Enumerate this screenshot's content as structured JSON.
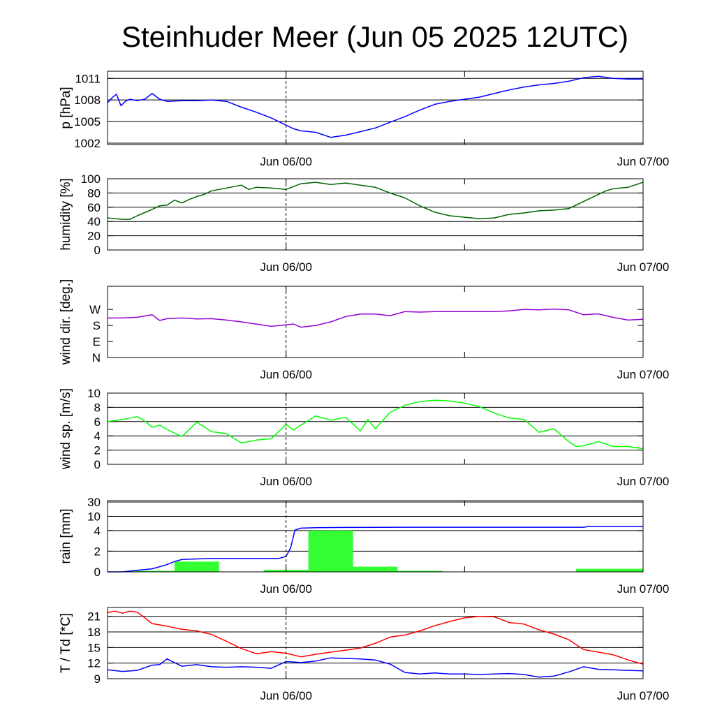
{
  "title": "Steinhuder Meer (Jun 05 2025 12UTC)",
  "colors": {
    "pressure": "#0000ff",
    "humidity": "#006400",
    "wind_dir": "#9400d3",
    "wind_speed": "#00ff00",
    "rain_bar": "#33ff33",
    "rain_line": "#0000ff",
    "temperature": "#ff0000",
    "dewpoint": "#0000ff"
  },
  "chart_data": [
    {
      "type": "line",
      "ylabel": "p [hPa]",
      "x_tick_labels": [
        "Jun 06/00",
        "Jun 07/00"
      ],
      "xlim": [
        0,
        36
      ],
      "ylim": [
        1001.8,
        1012
      ],
      "yticks": [
        1002,
        1005,
        1008,
        1011
      ],
      "ytick_labels": [
        "1002",
        "1005",
        "1008",
        "1011"
      ],
      "grid": "horizontal",
      "series": [
        {
          "color_key": "pressure",
          "x": [
            0,
            0.3,
            0.6,
            0.9,
            1.2,
            1.5,
            2,
            2.5,
            3,
            3.5,
            4,
            5,
            6,
            7,
            8,
            9,
            10,
            11,
            11.5,
            12,
            12.5,
            13,
            14,
            15,
            16,
            17,
            18,
            19,
            20,
            21,
            22,
            23,
            24,
            25,
            26,
            27,
            28,
            29,
            30,
            31,
            32,
            33,
            34,
            35,
            36
          ],
          "values": [
            1007.6,
            1008.3,
            1008.8,
            1007.2,
            1007.8,
            1008.1,
            1007.9,
            1008.1,
            1008.9,
            1008.1,
            1007.8,
            1007.9,
            1007.9,
            1008.0,
            1007.8,
            1007.0,
            1006.3,
            1005.5,
            1005.0,
            1004.5,
            1004.0,
            1003.7,
            1003.5,
            1002.8,
            1003.1,
            1003.6,
            1004.1,
            1004.9,
            1005.7,
            1006.6,
            1007.4,
            1007.8,
            1008.1,
            1008.4,
            1008.9,
            1009.4,
            1009.8,
            1010.1,
            1010.3,
            1010.6,
            1011.1,
            1011.3,
            1011.0,
            1010.9,
            1010.9
          ]
        }
      ]
    },
    {
      "type": "line",
      "ylabel": "humidity [%]",
      "x_tick_labels": [
        "Jun 06/00",
        "Jun 07/00"
      ],
      "xlim": [
        0,
        36
      ],
      "ylim": [
        0,
        100
      ],
      "yticks": [
        0,
        20,
        40,
        60,
        80,
        100
      ],
      "ytick_labels": [
        "0",
        "20",
        "40",
        "60",
        "80",
        "100"
      ],
      "grid": "horizontal",
      "series": [
        {
          "color_key": "humidity",
          "x": [
            0,
            1,
            1.5,
            2,
            3,
            3.5,
            4,
            4.5,
            5,
            5.5,
            6,
            6.5,
            7,
            8,
            9,
            9.5,
            10,
            11,
            12,
            13,
            14,
            15,
            16,
            17,
            18,
            19,
            20,
            21,
            22,
            23,
            24,
            25,
            26,
            27,
            28,
            29,
            30,
            31,
            32,
            33,
            33.5,
            34,
            35,
            36
          ],
          "values": [
            45,
            43,
            43,
            48,
            57,
            62,
            63,
            70,
            66,
            71,
            75,
            78,
            83,
            87,
            91,
            85,
            88,
            87,
            85,
            93,
            95,
            92,
            94,
            91,
            88,
            80,
            73,
            62,
            53,
            48,
            46,
            44,
            45,
            50,
            52,
            55,
            56,
            58,
            68,
            78,
            83,
            86,
            88,
            95
          ]
        }
      ]
    },
    {
      "type": "line",
      "ylabel": "wind dir. [deg.]",
      "x_tick_labels": [
        "Jun 06/00",
        "Jun 07/00"
      ],
      "xlim": [
        0,
        36
      ],
      "ylim": [
        0,
        400
      ],
      "yticks": [
        0,
        90,
        180,
        270
      ],
      "ytick_labels": [
        "N",
        "E",
        "S",
        "W"
      ],
      "grid": "none",
      "series": [
        {
          "color_key": "wind_dir",
          "x": [
            0,
            1,
            2,
            3,
            3.5,
            4,
            5,
            6,
            7,
            8,
            9,
            10,
            11,
            12,
            12.5,
            13,
            14,
            15,
            16,
            17,
            18,
            19,
            20,
            21,
            22,
            23,
            24,
            25,
            26,
            27,
            28,
            29,
            30,
            31,
            32,
            33,
            34,
            35,
            36
          ],
          "values": [
            222,
            222,
            226,
            240,
            208,
            218,
            222,
            217,
            218,
            210,
            200,
            188,
            175,
            183,
            188,
            170,
            180,
            200,
            230,
            244,
            244,
            235,
            258,
            255,
            258,
            258,
            258,
            258,
            258,
            262,
            270,
            268,
            272,
            268,
            240,
            245,
            225,
            210,
            215
          ]
        }
      ]
    },
    {
      "type": "line",
      "ylabel": "wind sp. [m/s]",
      "x_tick_labels": [
        "Jun 06/00",
        "Jun 07/00"
      ],
      "xlim": [
        0,
        36
      ],
      "ylim": [
        0,
        10
      ],
      "yticks": [
        0,
        2,
        4,
        6,
        8,
        10
      ],
      "ytick_labels": [
        "0",
        "2",
        "4",
        "6",
        "8",
        "10"
      ],
      "grid": "horizontal",
      "series": [
        {
          "color_key": "wind_speed",
          "x": [
            0,
            1,
            2,
            2.5,
            3,
            3.5,
            4,
            5,
            6,
            7,
            8,
            9,
            10,
            11,
            12,
            12.5,
            13,
            14,
            15,
            16,
            17,
            17.5,
            18,
            19,
            20,
            21,
            22,
            23,
            24,
            25,
            26,
            27,
            28,
            29,
            30,
            31,
            31.5,
            32,
            33,
            34,
            35,
            36
          ],
          "values": [
            6.0,
            6.3,
            6.7,
            6.1,
            5.2,
            5.5,
            4.9,
            3.9,
            5.9,
            4.6,
            4.3,
            3.0,
            3.4,
            3.6,
            5.6,
            4.8,
            5.5,
            6.8,
            6.2,
            6.6,
            4.7,
            6.3,
            5.0,
            7.3,
            8.3,
            8.8,
            9.0,
            8.9,
            8.6,
            8.1,
            7.2,
            6.5,
            6.3,
            4.5,
            5.0,
            3.2,
            2.5,
            2.6,
            3.2,
            2.5,
            2.5,
            2.2
          ]
        }
      ]
    },
    {
      "type": "bar",
      "ylabel": "rain [mm]",
      "x_tick_labels": [
        "Jun 06/00",
        "Jun 07/00"
      ],
      "xlim": [
        0,
        36
      ],
      "yticks": [
        0,
        2,
        4,
        10,
        30
      ],
      "ytick_labels": [
        "0",
        "2",
        "4",
        "10",
        "30"
      ],
      "grid": "horizontal",
      "bars": {
        "color_key": "rain_bar",
        "x_start": [
          0,
          1.5,
          4.5,
          7.5,
          10.5,
          13.5,
          16.5,
          19.5,
          22.5,
          25.5,
          28.5,
          31.5,
          34.5
        ],
        "x_end": [
          1.5,
          4.5,
          7.5,
          10.5,
          13.5,
          16.5,
          19.5,
          22.5,
          25.5,
          28.5,
          31.5,
          34.5,
          36
        ],
        "values": [
          0,
          0.1,
          1.0,
          0,
          0.2,
          4.0,
          0.5,
          0.1,
          0,
          0,
          0,
          0.3,
          0.3
        ]
      },
      "series": [
        {
          "name": "",
          "color_key": "rain_line",
          "x": [
            0,
            1,
            2,
            3,
            4,
            4.5,
            5,
            6,
            7,
            8,
            9,
            10,
            11,
            11.5,
            12,
            12.3,
            12.6,
            13,
            14,
            16,
            20,
            24,
            28,
            32,
            32.3,
            36
          ],
          "values": [
            0,
            0,
            0.15,
            0.3,
            0.7,
            1.0,
            1.2,
            1.25,
            1.3,
            1.3,
            1.3,
            1.3,
            1.3,
            1.3,
            1.5,
            2.3,
            4.2,
            5.0,
            5.2,
            5.3,
            5.4,
            5.4,
            5.4,
            5.4,
            5.7,
            5.7
          ]
        }
      ]
    },
    {
      "type": "line",
      "ylabel": "T / Td [*C]",
      "x_tick_labels": [
        "Jun 06/00",
        "Jun 07/00"
      ],
      "xlim": [
        0,
        36
      ],
      "ylim": [
        9,
        22.7
      ],
      "yticks": [
        9,
        12,
        15,
        18,
        21
      ],
      "ytick_labels": [
        "9",
        "12",
        "15",
        "18",
        "21"
      ],
      "grid": "horizontal",
      "series": [
        {
          "color_key": "temperature",
          "x": [
            0,
            0.5,
            1,
            1.5,
            2,
            2.5,
            3,
            4,
            5,
            6,
            7,
            8,
            9,
            10,
            11,
            12,
            13,
            14,
            15,
            16,
            17,
            18,
            19,
            20,
            21,
            22,
            23,
            24,
            25,
            26,
            27,
            28,
            29,
            30,
            31,
            32,
            33,
            34,
            35,
            36
          ],
          "values": [
            21.7,
            22.0,
            21.6,
            22.0,
            21.8,
            20.7,
            19.6,
            19.1,
            18.5,
            18.2,
            17.5,
            16.2,
            14.8,
            13.8,
            14.2,
            13.9,
            13.2,
            13.7,
            14.1,
            14.5,
            14.9,
            15.8,
            17.0,
            17.4,
            18.2,
            19.2,
            20.0,
            20.7,
            21.0,
            20.9,
            19.8,
            19.5,
            18.4,
            17.6,
            16.5,
            14.6,
            14.1,
            13.6,
            12.6,
            11.8
          ]
        },
        {
          "color_key": "dewpoint",
          "x": [
            0,
            1,
            2,
            3,
            3.5,
            4,
            5,
            6,
            7,
            8,
            9,
            10,
            11,
            12,
            13,
            14,
            15,
            16,
            17,
            18,
            19,
            20,
            21,
            22,
            23,
            24,
            25,
            26,
            27,
            28,
            29,
            30,
            31,
            32,
            33,
            34,
            35,
            36
          ],
          "values": [
            10.7,
            10.4,
            10.6,
            11.6,
            11.7,
            12.8,
            11.4,
            11.7,
            11.3,
            11.2,
            11.3,
            11.2,
            11.0,
            12.3,
            12.1,
            12.4,
            13.0,
            12.9,
            12.8,
            12.6,
            11.8,
            10.2,
            9.9,
            10.1,
            9.9,
            9.9,
            9.8,
            9.9,
            10.0,
            9.8,
            9.3,
            9.5,
            10.3,
            11.3,
            10.8,
            10.7,
            10.6,
            10.5
          ]
        }
      ]
    }
  ]
}
